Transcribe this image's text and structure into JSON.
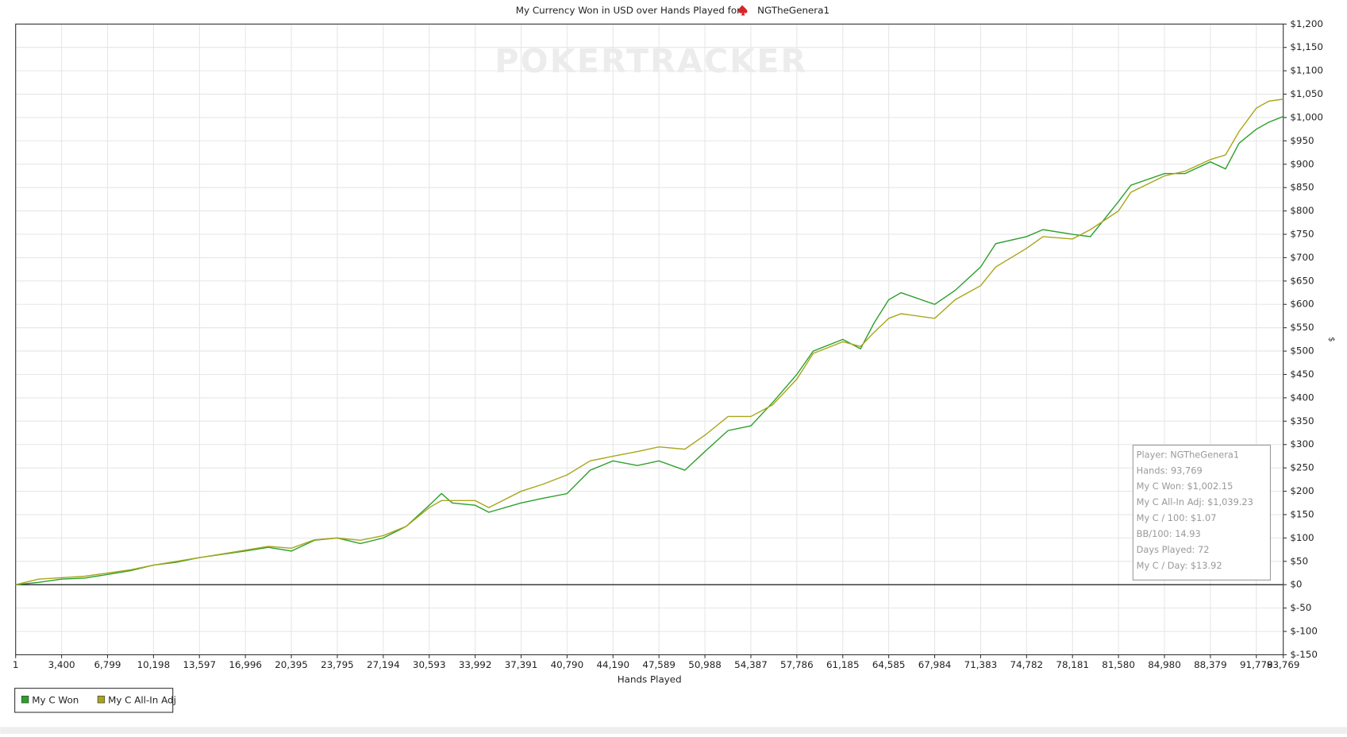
{
  "chart_data": {
    "type": "line",
    "title": "My Currency Won in USD over Hands Played for",
    "player": "NGTheGenera1",
    "watermark": "POKERTRACKER",
    "xlabel": "Hands Played",
    "ylabel": "$",
    "xlim": [
      1,
      93769
    ],
    "ylim": [
      -150,
      1200
    ],
    "grid": true,
    "legend": "bottom-left",
    "xticks": [
      1,
      {
        "value": 3400,
        "label": "3,400"
      },
      {
        "value": 6799,
        "label": "6,799"
      },
      {
        "value": 10198,
        "label": "10,198"
      },
      {
        "value": 13597,
        "label": "13,597"
      },
      {
        "value": 16996,
        "label": "16,996"
      },
      {
        "value": 20395,
        "label": "20,395"
      },
      {
        "value": 23795,
        "label": "23,795"
      },
      {
        "value": 27194,
        "label": "27,194"
      },
      {
        "value": 30593,
        "label": "30,593"
      },
      {
        "value": 33992,
        "label": "33,992"
      },
      {
        "value": 37391,
        "label": "37,391"
      },
      {
        "value": 40790,
        "label": "40,790"
      },
      {
        "value": 44190,
        "label": "44,190"
      },
      {
        "value": 47589,
        "label": "47,589"
      },
      {
        "value": 50988,
        "label": "50,988"
      },
      {
        "value": 54387,
        "label": "54,387"
      },
      {
        "value": 57786,
        "label": "57,786"
      },
      {
        "value": 61185,
        "label": "61,185"
      },
      {
        "value": 64585,
        "label": "64,585"
      },
      {
        "value": 67984,
        "label": "67,984"
      },
      {
        "value": 71383,
        "label": "71,383"
      },
      {
        "value": 74782,
        "label": "74,782"
      },
      {
        "value": 78181,
        "label": "78,181"
      },
      {
        "value": 81580,
        "label": "81,580"
      },
      {
        "value": 84980,
        "label": "84,980"
      },
      {
        "value": 88379,
        "label": "88,379"
      },
      {
        "value": 91778,
        "label": "91,778"
      },
      {
        "value": 93769,
        "label": "93,769"
      }
    ],
    "yticks": [
      {
        "value": 1200,
        "label": "$1,200"
      },
      {
        "value": 1150,
        "label": "$1,150"
      },
      {
        "value": 1100,
        "label": "$1,100"
      },
      {
        "value": 1050,
        "label": "$1,050"
      },
      {
        "value": 1000,
        "label": "$1,000"
      },
      {
        "value": 950,
        "label": "$950"
      },
      {
        "value": 900,
        "label": "$900"
      },
      {
        "value": 850,
        "label": "$850"
      },
      {
        "value": 800,
        "label": "$800"
      },
      {
        "value": 750,
        "label": "$750"
      },
      {
        "value": 700,
        "label": "$700"
      },
      {
        "value": 650,
        "label": "$650"
      },
      {
        "value": 600,
        "label": "$600"
      },
      {
        "value": 550,
        "label": "$550"
      },
      {
        "value": 500,
        "label": "$500"
      },
      {
        "value": 450,
        "label": "$450"
      },
      {
        "value": 400,
        "label": "$400"
      },
      {
        "value": 350,
        "label": "$350"
      },
      {
        "value": 300,
        "label": "$300"
      },
      {
        "value": 250,
        "label": "$250"
      },
      {
        "value": 200,
        "label": "$200"
      },
      {
        "value": 150,
        "label": "$150"
      },
      {
        "value": 100,
        "label": "$100"
      },
      {
        "value": 50,
        "label": "$50"
      },
      {
        "value": 0,
        "label": "$0"
      },
      {
        "value": -50,
        "label": "$-50"
      },
      {
        "value": -100,
        "label": "$-100"
      },
      {
        "value": -150,
        "label": "$-150"
      }
    ],
    "x": [
      1,
      1700,
      3400,
      5100,
      6799,
      8500,
      10198,
      11900,
      13597,
      15300,
      16996,
      18700,
      20395,
      22100,
      23795,
      25500,
      27194,
      28900,
      30593,
      31500,
      32300,
      33992,
      35000,
      37391,
      39000,
      40790,
      42500,
      44190,
      46000,
      47589,
      49500,
      50988,
      52700,
      54387,
      56000,
      57786,
      59000,
      61185,
      62500,
      63500,
      64585,
      65500,
      67984,
      69500,
      71383,
      72500,
      74782,
      76000,
      78181,
      79500,
      81580,
      82500,
      84980,
      86500,
      88379,
      89500,
      90500,
      91778,
      92700,
      93769
    ],
    "series": [
      {
        "name": "My C Won",
        "color": "#2ca02c",
        "values": [
          0,
          5,
          12,
          14,
          22,
          30,
          42,
          48,
          58,
          65,
          72,
          80,
          72,
          95,
          100,
          88,
          100,
          125,
          170,
          195,
          175,
          170,
          155,
          175,
          185,
          195,
          245,
          265,
          255,
          265,
          245,
          285,
          330,
          340,
          390,
          450,
          500,
          525,
          505,
          560,
          610,
          625,
          600,
          630,
          680,
          730,
          745,
          760,
          750,
          745,
          820,
          855,
          880,
          880,
          905,
          890,
          945,
          975,
          990,
          1002.15
        ]
      },
      {
        "name": "My C All-In Adj",
        "color": "#a8a61c",
        "values": [
          0,
          12,
          15,
          18,
          25,
          32,
          42,
          50,
          58,
          66,
          74,
          82,
          78,
          96,
          100,
          95,
          105,
          125,
          165,
          180,
          180,
          180,
          165,
          200,
          215,
          235,
          265,
          275,
          285,
          295,
          290,
          320,
          360,
          360,
          385,
          440,
          495,
          520,
          510,
          540,
          570,
          580,
          570,
          610,
          640,
          680,
          720,
          745,
          740,
          760,
          800,
          840,
          875,
          885,
          910,
          920,
          970,
          1020,
          1035,
          1039.23
        ]
      }
    ],
    "info": [
      "Player: NGTheGenera1",
      "Hands: 93,769",
      "My C Won: $1,002.15",
      "My C All-In Adj: $1,039.23",
      "My C / 100: $1.07",
      "BB/100: 14.93",
      "Days Played: 72",
      "My C / Day: $13.92"
    ]
  }
}
